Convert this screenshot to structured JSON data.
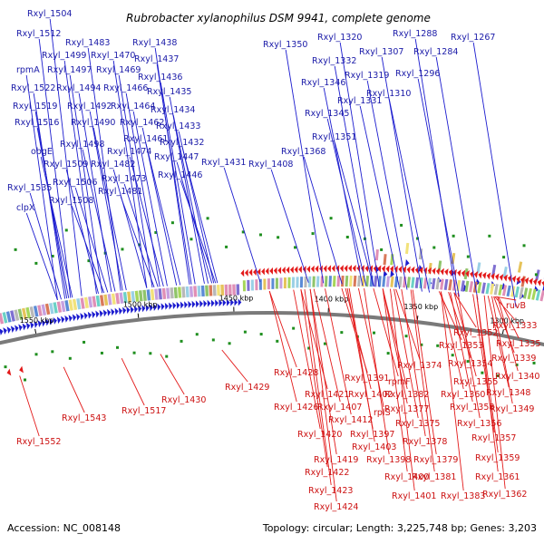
{
  "title": "Rubrobacter xylanophilus DSM 9941, complete genome",
  "footer": {
    "accession": "Accession: NC_008148",
    "summary": "Topology: circular; Length: 3,225,748 bp; Genes: 3,203"
  },
  "colors": {
    "plus_strand": "#1c1ccf",
    "minus_strand": "#e31a1a",
    "backbone": "#7a7a7a",
    "gc_marks": "#1f8f1f",
    "label_plus": "#1a1aa8",
    "label_minus": "#cc1111"
  },
  "scale_labels": [
    "1550 kbp",
    "1500 kbp",
    "1450 kbp",
    "1400 kbp",
    "1350 kbp",
    "1300 kbp"
  ],
  "plus_labels": [
    "Rxyl_1504",
    "Rxyl_1512",
    "Rxyl_1483",
    "Rxyl_1438",
    "Rxyl_1499",
    "Rxyl_1470",
    "Rxyl_1437",
    "rpmA",
    "Rxyl_1497",
    "Rxyl_1469",
    "Rxyl_1436",
    "Rxyl_1522",
    "Rxyl_1494",
    "Rxyl_1466",
    "Rxyl_1435",
    "Rxyl_1519",
    "Rxyl_1492",
    "Rxyl_1464",
    "Rxyl_1434",
    "Rxyl_1516",
    "Rxyl_1490",
    "Rxyl_1462",
    "Rxyl_1433",
    "Rxyl_1461",
    "Rxyl_1432",
    "Rxyl_1498",
    "Rxyl_1474",
    "obgE",
    "Rxyl_1447",
    "Rxyl_1509",
    "Rxyl_1482",
    "Rxyl_1431",
    "Rxyl_1473",
    "Rxyl_1446",
    "Rxyl_1506",
    "Rxyl_1535",
    "Rxyl_1481",
    "Rxyl_1508",
    "clpX",
    "Rxyl_1350",
    "Rxyl_1320",
    "Rxyl_1288",
    "Rxyl_1267",
    "Rxyl_1307",
    "Rxyl_1332",
    "Rxyl_1284",
    "Rxyl_1319",
    "Rxyl_1296",
    "Rxyl_1346",
    "Rxyl_1310",
    "Rxyl_1331",
    "Rxyl_1345",
    "Rxyl_1351",
    "Rxyl_1368",
    "Rxyl_1408"
  ],
  "minus_labels": [
    "ruvB",
    "Rxyl_1333",
    "Rxyl_1352",
    "Rxyl_1335",
    "Rxyl_1353",
    "Rxyl_1339",
    "Rxyl_1374",
    "Rxyl_1354",
    "Rxyl_1340",
    "Rxyl_1391",
    "rpmF",
    "Rxyl_1355",
    "Rxyl_1348",
    "Rxyl_1428",
    "Rxyl_1382",
    "Rxyl_1360",
    "Rxyl_1349",
    "Rxyl_1421",
    "Rxyl_1402",
    "Rxyl_1358",
    "Rxyl_1426",
    "Rxyl_1407",
    "Rxyl_1377",
    "Rxyl_1356",
    "Rxyl_1412",
    "rplS",
    "Rxyl_1375",
    "Rxyl_1357",
    "Rxyl_1420",
    "Rxyl_1397",
    "Rxyl_1378",
    "Rxyl_1403",
    "Rxyl_1359",
    "Rxyl_1419",
    "Rxyl_1398",
    "Rxyl_1379",
    "Rxyl_1361",
    "Rxyl_1422",
    "Rxyl_1400",
    "Rxyl_1381",
    "Rxyl_1423",
    "Rxyl_1401",
    "Rxyl_1383",
    "Rxyl_1362",
    "Rxyl_1424",
    "Rxyl_1430",
    "Rxyl_1429",
    "Rxyl_1543",
    "Rxyl_1517",
    "Rxyl_1552"
  ]
}
